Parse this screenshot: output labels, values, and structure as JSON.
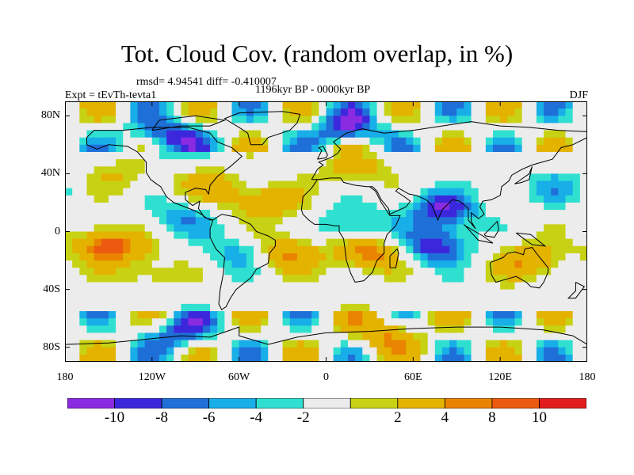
{
  "title": "Tot. Cloud Cov. (random overlap, in %)",
  "stats_line": "rmsd= 4.94541 diff= -0.410007",
  "experiment": "Expt = tEvTh-tevta1",
  "period": "1196kyr BP - 0000kyr BP",
  "season": "DJF",
  "map": {
    "projection": "cylindrical-equidistant",
    "lon_range": [
      -180,
      180
    ],
    "lat_range": [
      -90,
      90
    ],
    "lat_ticks": [
      {
        "value": 80,
        "label": "80N"
      },
      {
        "value": 40,
        "label": "40N"
      },
      {
        "value": 0,
        "label": "0"
      },
      {
        "value": -40,
        "label": "40S"
      },
      {
        "value": -80,
        "label": "80S"
      }
    ],
    "lon_ticks": [
      {
        "value": -180,
        "label": "180"
      },
      {
        "value": -120,
        "label": "120W"
      },
      {
        "value": -60,
        "label": "60W"
      },
      {
        "value": 0,
        "label": "0"
      },
      {
        "value": 60,
        "label": "60E"
      },
      {
        "value": 120,
        "label": "120E"
      },
      {
        "value": 180,
        "label": "180"
      }
    ]
  },
  "colorbar": {
    "colors": [
      "#8a2be2",
      "#3c28dc",
      "#1f6fd8",
      "#18aee8",
      "#2fe0d0",
      "#ececec",
      "#c8d214",
      "#e3b300",
      "#ea8400",
      "#ec5a10",
      "#e21c1c"
    ],
    "labels": [
      "-10",
      "-8",
      "-6",
      "-4",
      "-2",
      "2",
      "4",
      "8",
      "10"
    ]
  },
  "chart_data": {
    "type": "heatmap",
    "title": "Tot. Cloud Cov. (random overlap, in %)",
    "field": "difference in total cloud cover (%)",
    "levels": [
      -10,
      -8,
      -6,
      -4,
      -2,
      2,
      4,
      8,
      10
    ],
    "dominant_anomalies": [
      {
        "lon": -150,
        "lat": -10,
        "value": 12
      },
      {
        "lon": -30,
        "lat": -15,
        "value": 10
      },
      {
        "lon": 30,
        "lat": -15,
        "value": 10
      },
      {
        "lon": 20,
        "lat": 5,
        "value": -6
      },
      {
        "lon": 75,
        "lat": -10,
        "value": -10
      },
      {
        "lon": 80,
        "lat": 15,
        "value": -10
      },
      {
        "lon": 140,
        "lat": -20,
        "value": 8
      },
      {
        "lon": -100,
        "lat": 10,
        "value": -6
      },
      {
        "lon": -55,
        "lat": -15,
        "value": -7
      },
      {
        "lon": 20,
        "lat": 45,
        "value": 6
      },
      {
        "lon": -80,
        "lat": 30,
        "value": 6
      },
      {
        "lon": -110,
        "lat": 65,
        "value": -10
      },
      {
        "lon": 15,
        "lat": 70,
        "value": -10
      },
      {
        "lon": -40,
        "lat": 20,
        "value": 7
      },
      {
        "lon": -120,
        "lat": -30,
        "value": 4
      },
      {
        "lon": 160,
        "lat": 30,
        "value": -4
      },
      {
        "lon": -140,
        "lat": 40,
        "value": 4
      },
      {
        "lon": 40,
        "lat": -70,
        "value": 8
      },
      {
        "lon": -100,
        "lat": -70,
        "value": -8
      }
    ]
  }
}
